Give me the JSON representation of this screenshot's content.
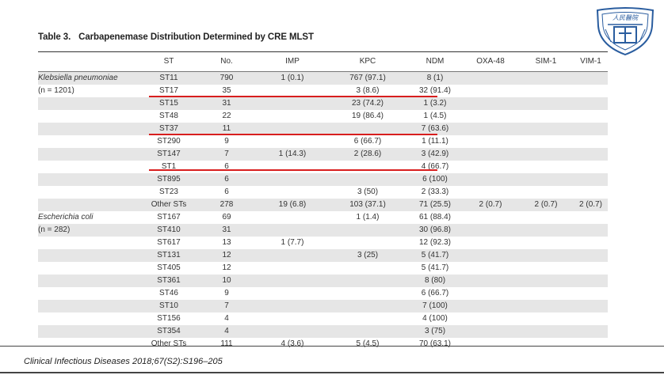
{
  "table": {
    "number": "Table 3.",
    "title": "Carbapenemase Distribution Determined by CRE MLST",
    "headers": [
      "",
      "ST",
      "No.",
      "IMP",
      "KPC",
      "NDM",
      "OXA-48",
      "SIM-1",
      "VIM-1"
    ],
    "rows": [
      [
        "Klebsiella pneumoniae",
        "ST11",
        "790",
        "1 (0.1)",
        "767 (97.1)",
        "8 (1)",
        "",
        "",
        ""
      ],
      [
        "(n = 1201)",
        "ST17",
        "35",
        "",
        "3 (8.6)",
        "32 (91.4)",
        "",
        "",
        ""
      ],
      [
        "",
        "ST15",
        "31",
        "",
        "23 (74.2)",
        "1 (3.2)",
        "",
        "",
        ""
      ],
      [
        "",
        "ST48",
        "22",
        "",
        "19 (86.4)",
        "1 (4.5)",
        "",
        "",
        ""
      ],
      [
        "",
        "ST37",
        "11",
        "",
        "",
        "7 (63.6)",
        "",
        "",
        ""
      ],
      [
        "",
        "ST290",
        "9",
        "",
        "6 (66.7)",
        "1 (11.1)",
        "",
        "",
        ""
      ],
      [
        "",
        "ST147",
        "7",
        "1 (14.3)",
        "2 (28.6)",
        "3 (42.9)",
        "",
        "",
        ""
      ],
      [
        "",
        "ST1",
        "6",
        "",
        "",
        "4 (66.7)",
        "",
        "",
        ""
      ],
      [
        "",
        "ST895",
        "6",
        "",
        "",
        "6 (100)",
        "",
        "",
        ""
      ],
      [
        "",
        "ST23",
        "6",
        "",
        "3 (50)",
        "2 (33.3)",
        "",
        "",
        ""
      ],
      [
        "",
        "Other STs",
        "278",
        "19 (6.8)",
        "103 (37.1)",
        "71 (25.5)",
        "2 (0.7)",
        "2 (0.7)",
        "2 (0.7)"
      ],
      [
        "Escherichia coli",
        "ST167",
        "69",
        "",
        "1 (1.4)",
        "61 (88.4)",
        "",
        "",
        ""
      ],
      [
        "(n = 282)",
        "ST410",
        "31",
        "",
        "",
        "30 (96.8)",
        "",
        "",
        ""
      ],
      [
        "",
        "ST617",
        "13",
        "1 (7.7)",
        "",
        "12 (92.3)",
        "",
        "",
        ""
      ],
      [
        "",
        "ST131",
        "12",
        "",
        "3 (25)",
        "5 (41.7)",
        "",
        "",
        ""
      ],
      [
        "",
        "ST405",
        "12",
        "",
        "",
        "5 (41.7)",
        "",
        "",
        ""
      ],
      [
        "",
        "ST361",
        "10",
        "",
        "",
        "8 (80)",
        "",
        "",
        ""
      ],
      [
        "",
        "ST46",
        "9",
        "",
        "",
        "6 (66.7)",
        "",
        "",
        ""
      ],
      [
        "",
        "ST10",
        "7",
        "",
        "",
        "7 (100)",
        "",
        "",
        ""
      ],
      [
        "",
        "ST156",
        "4",
        "",
        "",
        "4 (100)",
        "",
        "",
        ""
      ],
      [
        "",
        "ST354",
        "4",
        "",
        "",
        "3 (75)",
        "",
        "",
        ""
      ],
      [
        "",
        "Other STs",
        "111",
        "4 (3.6)",
        "5 (4.5)",
        "70 (63.1)",
        "",
        "",
        ""
      ]
    ]
  },
  "highlight_color": "#d81e1e",
  "shade_color": "#e6e6e6",
  "source": "Clinical Infectious Diseases  2018;67(S2):S196–205",
  "logo": {
    "text": "人民醫院",
    "icon": "hospital-logo-icon"
  }
}
